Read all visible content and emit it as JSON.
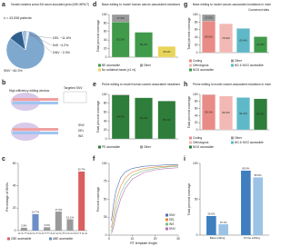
{
  "chart_data": [
    {
      "panel": "a",
      "type": "pie",
      "title": "Somatic mutations across 594 cancer-associated genes (MSK-IMPACT)",
      "subtitle": "n = 43,538 patients",
      "labels": [
        "SNV",
        "DEL",
        "INS",
        "DNV"
      ],
      "values": [
        82.3,
        11.6,
        4.2,
        2.0
      ],
      "value_labels": [
        "~82.3%",
        "~11.6%",
        "~4.2%",
        "~2.0%"
      ],
      "colors": [
        "#7fa8cf",
        "#2f5f8f",
        "#9fc0dd",
        "#d9e6f2"
      ]
    },
    {
      "panel": "c",
      "type": "bar",
      "ylabel": "Percentage of SNVs",
      "categories": [
        "A>C T>G",
        "A>G T>C",
        "A>T T>A",
        "C>A G>T",
        "C>G G>C",
        "C>T G>A"
      ],
      "values": [
        2.5,
        14.7,
        3.0,
        17.0,
        10.1,
        52.7
      ],
      "value_labels": [
        "2.5%",
        "14.7%",
        "3.0%",
        "17.0%",
        "10.1%",
        "52.7%"
      ],
      "colors": [
        "#9a9a9a",
        "#6c8fc7",
        "#9a9a9a",
        "#9a9a9a",
        "#9a9a9a",
        "#d9605f"
      ],
      "legend": [
        {
          "name": "CBE accessible",
          "color": "#d9605f"
        },
        {
          "name": "ABE accessible",
          "color": "#6c8fc7"
        }
      ],
      "ylim": [
        0,
        60
      ],
      "yticks": [
        0,
        20,
        40,
        60
      ]
    },
    {
      "panel": "d",
      "type": "stacked",
      "title": "Base editing to model human cancer-associated mutations",
      "ylabel": "Total percent coverage",
      "categories": [
        null,
        null,
        null
      ],
      "series": [
        {
          "name": "BE accessible",
          "color": "#3f9a4a",
          "values": [
            82.5,
            58.4,
            null
          ],
          "value_labels": [
            "82.5%",
            "58.4%",
            null
          ]
        },
        {
          "name": "Other",
          "color": "#9a9a9a",
          "values": [
            17.5,
            null,
            null
          ],
          "value_labels": [
            "17.5%",
            null,
            null
          ]
        },
        {
          "name": "No collateral bases (±1 nt)",
          "color": "#e8d45a",
          "values": [
            null,
            null,
            25.2
          ],
          "value_labels": [
            null,
            null,
            "25.2%"
          ]
        }
      ],
      "ylim": [
        0,
        100
      ],
      "yticks": [
        0,
        20,
        40,
        60,
        80,
        100
      ]
    },
    {
      "panel": "e",
      "type": "stacked",
      "title": "Prime editing to model human cancer-associated mutations",
      "ylabel": "Total percent coverage",
      "categories": [
        null,
        null,
        null
      ],
      "series": [
        {
          "name": "PE accessible",
          "color": "#2e7d3a",
          "values": [
            98.3,
            92.4,
            85.1
          ],
          "value_labels": [
            "98.3%",
            "92.4%",
            "85.1%"
          ]
        },
        {
          "name": "Other",
          "color": "#9a9a9a",
          "values": [
            1.7,
            null,
            null
          ],
          "value_labels": [
            null,
            null,
            null
          ]
        }
      ],
      "ylim": [
        0,
        100
      ],
      "yticks": [
        0,
        20,
        40,
        60,
        80,
        100
      ]
    },
    {
      "panel": "f",
      "type": "line",
      "xlabel": "RT template length",
      "ylabel": "Percent coverage",
      "x": [
        1,
        2,
        3,
        5,
        7,
        10,
        15,
        20,
        25,
        30
      ],
      "series": [
        {
          "name": "SNV",
          "color": "#4a6fb5",
          "values": [
            20,
            45,
            62,
            80,
            88,
            93,
            96,
            97,
            98,
            98
          ]
        },
        {
          "name": "DEL",
          "color": "#e08a3c",
          "values": [
            10,
            30,
            48,
            68,
            80,
            88,
            93,
            95,
            96,
            97
          ]
        },
        {
          "name": "INS",
          "color": "#7fbf7f",
          "values": [
            5,
            20,
            36,
            58,
            72,
            83,
            90,
            93,
            95,
            96
          ]
        },
        {
          "name": "DNV",
          "color": "#b56fb5",
          "values": [
            2,
            12,
            28,
            50,
            65,
            78,
            87,
            91,
            93,
            94
          ]
        }
      ],
      "xlim": [
        0,
        30
      ],
      "xticks": [
        0,
        10,
        20,
        30
      ],
      "ylim": [
        0,
        100
      ],
      "yticks": [
        0,
        25,
        50,
        75,
        100
      ]
    },
    {
      "panel": "g",
      "type": "stacked",
      "title": "Base editing to model cancer-associated mutations in mice",
      "annotation": "Conserved sites",
      "ylabel": "Total percent coverage",
      "categories": [
        null,
        null,
        null,
        null
      ],
      "series": [
        {
          "name": "Coding",
          "color": "#e98b86",
          "values": [
            82.5,
            null,
            null,
            null
          ],
          "value_labels": [
            "82.5%",
            null,
            null,
            null
          ]
        },
        {
          "name": "Other",
          "color": "#9a9a9a",
          "values": [
            17.5,
            null,
            null,
            null
          ],
          "value_labels": [
            "17.5%",
            null,
            null,
            null
          ]
        },
        {
          "name": "Orthologous",
          "color": "#f2b8b4",
          "values": [
            null,
            75.9,
            null,
            null
          ],
          "value_labels": [
            null,
            "75.9%",
            null,
            null
          ]
        },
        {
          "name": "NG & NGG accessible",
          "color": "#5fb8c8",
          "values": [
            null,
            null,
            63.4,
            null
          ],
          "value_labels": [
            null,
            null,
            "63.4%",
            null
          ]
        },
        {
          "name": "NGG accessible",
          "color": "#3f9a4a",
          "values": [
            null,
            null,
            null,
            41.8
          ],
          "value_labels": [
            null,
            null,
            null,
            "41.8%"
          ]
        }
      ],
      "ylim": [
        0,
        100
      ],
      "yticks": [
        0,
        20,
        40,
        60,
        80,
        100
      ]
    },
    {
      "panel": "h",
      "type": "stacked",
      "title": "Prime editing to model cancer-associated mutations in mice",
      "ylabel": "Total percent coverage",
      "categories": [
        null,
        null,
        null,
        null
      ],
      "series": [
        {
          "name": "Coding",
          "color": "#e98b86",
          "values": [
            99.1,
            null,
            null,
            null
          ],
          "value_labels": [
            "99.1%",
            null,
            null,
            null
          ]
        },
        {
          "name": "Other",
          "color": "#9a9a9a",
          "values": [
            0.9,
            null,
            null,
            null
          ],
          "value_labels": [
            null,
            null,
            null,
            null
          ]
        },
        {
          "name": "Orthologous",
          "color": "#f2b8b4",
          "values": [
            null,
            95.3,
            null,
            null
          ],
          "value_labels": [
            null,
            "95.3%",
            null,
            null
          ]
        },
        {
          "name": "NG & NGG accessible",
          "color": "#5fb8c8",
          "values": [
            null,
            null,
            91.2,
            null
          ],
          "value_labels": [
            null,
            null,
            "91.2%",
            null
          ]
        },
        {
          "name": "NGG accessible",
          "color": "#2e7d3a",
          "values": [
            null,
            null,
            null,
            87.6
          ],
          "value_labels": [
            null,
            null,
            null,
            "87.6%"
          ]
        }
      ],
      "ylim": [
        0,
        100
      ],
      "yticks": [
        0,
        20,
        40,
        60,
        80,
        100
      ]
    },
    {
      "panel": "i",
      "type": "bar",
      "ylabel": "Total percent coverage",
      "categories": [
        "Base editing",
        "Prime editing"
      ],
      "series": [
        {
          "color": "#3f7fc0",
          "values": [
            26.6,
            89.9
          ],
          "value_labels": [
            "26.6%",
            "89.9%"
          ]
        },
        {
          "color": "#9cc3e6",
          "values": [
            15.1,
            80.5
          ],
          "value_labels": [
            "15.1%",
            "80.5%"
          ]
        }
      ],
      "ylim": [
        0,
        100
      ],
      "yticks": [
        0,
        50,
        100
      ]
    }
  ],
  "diagram": {
    "panel": "b",
    "labels": [
      "High-efficiency editing window",
      "Targeted SNV",
      "SNV",
      "DEL",
      "INS"
    ]
  }
}
